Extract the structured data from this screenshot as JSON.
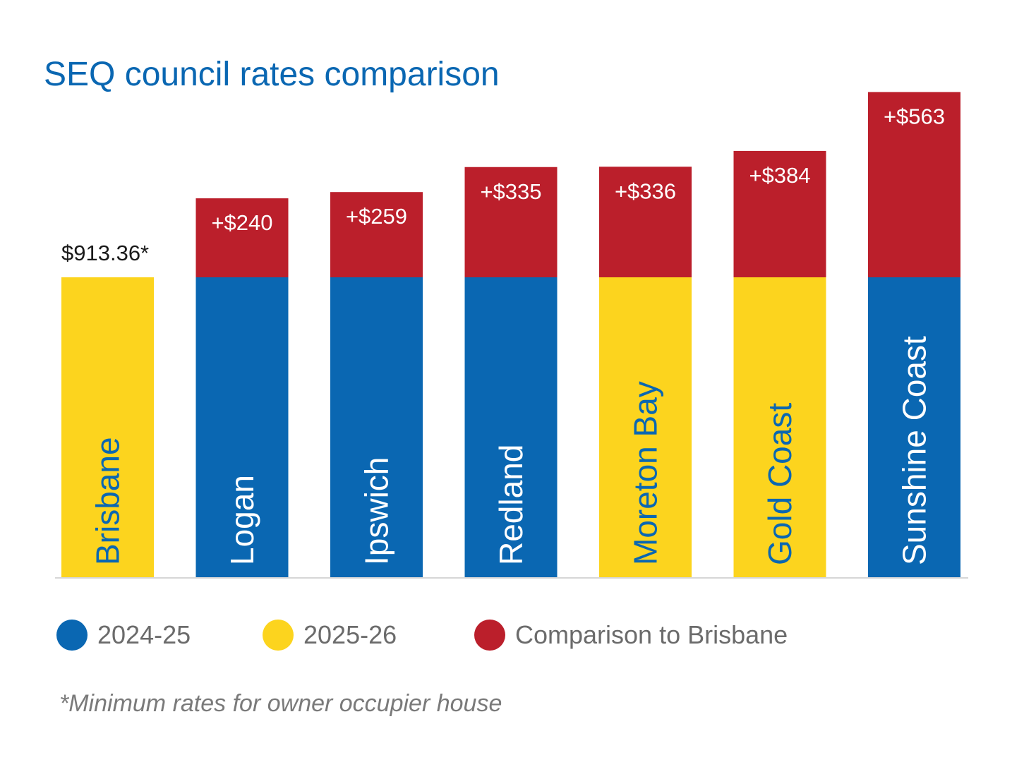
{
  "title": "SEQ council rates comparison",
  "footnote": "*Minimum rates for owner occupier house",
  "colors": {
    "year_2024_25": "#0a67b2",
    "year_2025_26": "#fcd41e",
    "comparison": "#bb1f2b",
    "title": "#0a67b2",
    "axis": "#d6d6d6"
  },
  "legend": [
    {
      "label": "2024-25",
      "color": "#0a67b2"
    },
    {
      "label": "2025-26",
      "color": "#fcd41e"
    },
    {
      "label": "Comparison to Brisbane",
      "color": "#bb1f2b"
    }
  ],
  "chart_data": {
    "type": "bar",
    "title": "SEQ council rates comparison",
    "stacked": true,
    "base_value": 913.36,
    "base_label": "$913.36*",
    "categories": [
      "Brisbane",
      "Logan",
      "Ipswich",
      "Redland",
      "Moreton Bay",
      "Gold Coast",
      "Sunshine Coast"
    ],
    "base_period": [
      "2025-26",
      "2024-25",
      "2024-25",
      "2024-25",
      "2025-26",
      "2025-26",
      "2024-25"
    ],
    "comparison_values": [
      0,
      240,
      259,
      335,
      336,
      384,
      563
    ],
    "comparison_labels": [
      "",
      "+$240",
      "+$259",
      "+$335",
      "+$336",
      "+$384",
      "+$563"
    ],
    "series": [
      {
        "name": "2024-25",
        "values": [
          0,
          913.36,
          913.36,
          913.36,
          0,
          0,
          913.36
        ]
      },
      {
        "name": "2025-26",
        "values": [
          913.36,
          0,
          0,
          0,
          913.36,
          913.36,
          0
        ]
      },
      {
        "name": "Comparison to Brisbane",
        "values": [
          0,
          240,
          259,
          335,
          336,
          384,
          563
        ]
      }
    ],
    "ylim": [
      0,
      1476.36
    ],
    "legend_position": "bottom",
    "grid": false
  }
}
